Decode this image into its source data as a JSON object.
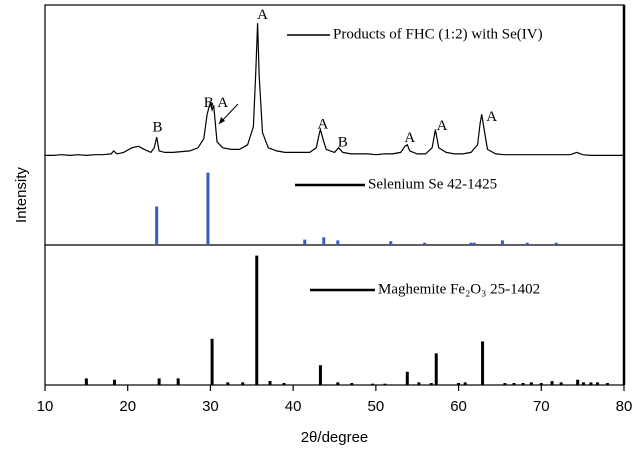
{
  "chart_data": [
    {
      "type": "line",
      "ylabel": "Intensity",
      "xlim": [
        10,
        80
      ],
      "ylim": [
        0,
        100
      ],
      "x": [
        10,
        11,
        12,
        13,
        14,
        15,
        16,
        17,
        18,
        18.3,
        18.7,
        19.5,
        20.5,
        21.3,
        22,
        22.8,
        23.2,
        23.5,
        23.8,
        24.5,
        25.5,
        26.5,
        27.5,
        28.5,
        29.2,
        29.6,
        30,
        30.2,
        30.4,
        30.8,
        31.5,
        32.5,
        33.5,
        34.5,
        35.2,
        35.5,
        35.7,
        35.9,
        36.3,
        37,
        38,
        39,
        40,
        41,
        42,
        42.8,
        43.1,
        43.3,
        43.6,
        44,
        45,
        45.5,
        46,
        47,
        48,
        49,
        50,
        51,
        52,
        53,
        53.5,
        53.8,
        54.1,
        55,
        56,
        56.8,
        57.2,
        57.6,
        58.5,
        59.5,
        60.5,
        61.5,
        62.3,
        62.6,
        62.8,
        63.1,
        63.5,
        64.5,
        65.5,
        66.5,
        67.5,
        68.5,
        69.5,
        70.5,
        71.5,
        72.5,
        73.5,
        74.3,
        75,
        76,
        77,
        78,
        79,
        80
      ],
      "series": [
        {
          "name": "Products of FHC (1:2) with Se(IV)",
          "color": "#000000",
          "values": [
            3,
            3,
            3.5,
            3,
            3.5,
            3,
            3.5,
            3.5,
            4,
            6,
            4,
            5,
            8,
            9,
            7,
            5,
            8,
            15,
            6,
            5,
            5,
            5.5,
            6,
            8,
            14,
            30,
            38,
            33,
            36,
            12,
            8,
            7,
            7,
            10,
            22,
            60,
            90,
            55,
            18,
            8,
            6,
            5,
            5,
            5,
            5,
            8,
            16,
            20,
            14,
            7,
            5,
            8,
            5,
            4,
            4,
            4,
            3.5,
            4,
            4,
            5,
            9,
            10,
            6,
            4,
            4,
            8,
            20,
            8,
            5,
            4,
            4,
            5,
            10,
            24,
            30,
            20,
            7,
            4,
            3.5,
            3.5,
            3.5,
            3.5,
            3.5,
            3.5,
            3.5,
            3.5,
            3.5,
            5,
            3.5,
            3,
            3,
            3,
            3,
            3
          ]
        }
      ],
      "annotations": [
        {
          "text": "A",
          "x": 36.3,
          "y": 95
        },
        {
          "text": "B",
          "x": 23.6,
          "y": 21
        },
        {
          "text": "B",
          "x": 29.8,
          "y": 37
        },
        {
          "text": "A",
          "x": 31.5,
          "y": 37
        },
        {
          "text": "A",
          "x": 43.6,
          "y": 23
        },
        {
          "text": "B",
          "x": 46,
          "y": 11
        },
        {
          "text": "A",
          "x": 54.1,
          "y": 14
        },
        {
          "text": "A",
          "x": 58,
          "y": 22
        },
        {
          "text": "A",
          "x": 64,
          "y": 28
        }
      ]
    },
    {
      "type": "stem",
      "xlim": [
        10,
        80
      ],
      "ylim": [
        0,
        100
      ],
      "name": "Selenium Se 42-1425",
      "color": "#3a5bbf",
      "x": [
        23.5,
        29.7,
        41.4,
        43.7,
        45.4,
        51.8,
        55.9,
        61.5,
        61.9,
        65.3,
        68.3,
        71.8
      ],
      "values": [
        50,
        94,
        7,
        10,
        6,
        5,
        3,
        3,
        3,
        6,
        3,
        3
      ]
    },
    {
      "type": "stem",
      "xlim": [
        10,
        80
      ],
      "ylim": [
        0,
        100
      ],
      "name": "Maghemite Fe₂O₃ 25-1402",
      "color": "#000000",
      "x": [
        15,
        18.4,
        23.8,
        26.1,
        30.2,
        32.1,
        33.9,
        35.6,
        37.2,
        38.9,
        43.3,
        45.4,
        47.1,
        49.6,
        51.1,
        53.8,
        55.2,
        56.7,
        57.3,
        60,
        60.8,
        62.9,
        65.6,
        66.7,
        67.8,
        68.8,
        70,
        71.3,
        72.4,
        74.4,
        75.1,
        76,
        76.8,
        78
      ],
      "values": [
        5,
        4,
        5,
        5,
        35,
        2,
        2,
        98,
        3,
        1.5,
        15,
        2,
        1.5,
        1,
        1,
        10,
        2,
        1.5,
        24,
        1.5,
        2,
        33,
        1.5,
        1.5,
        1.5,
        2,
        1.5,
        3,
        2,
        4,
        2,
        2,
        2,
        1.5
      ],
      "xlabel": "2θ/degree",
      "xticks": [
        10,
        20,
        30,
        40,
        50,
        60,
        70,
        80
      ]
    }
  ]
}
